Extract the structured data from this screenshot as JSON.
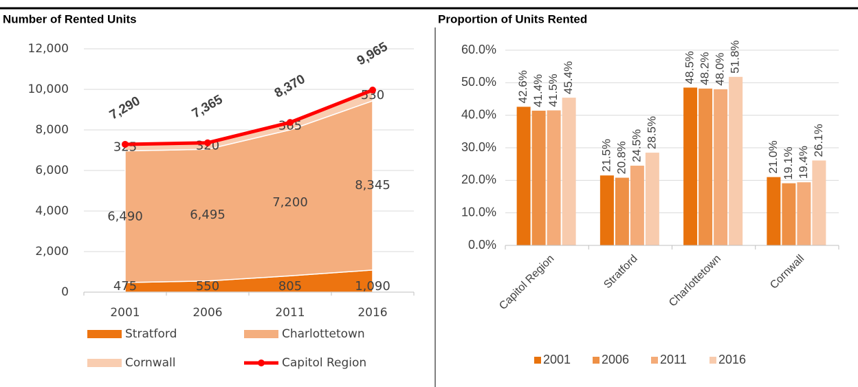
{
  "chart_data": [
    {
      "type": "area",
      "title": "Number of Rented Units",
      "categories": [
        "2001",
        "2006",
        "2011",
        "2016"
      ],
      "series": [
        {
          "name": "Stratford",
          "color": "#ed7410",
          "values": [
            475,
            550,
            805,
            1090
          ],
          "value_labels": [
            "475",
            "550",
            "805",
            "1,090"
          ]
        },
        {
          "name": "Charlottetown",
          "color": "#f4ae7e",
          "values": [
            6490,
            6495,
            7200,
            8345
          ],
          "value_labels": [
            "6,490",
            "6,495",
            "7,200",
            "8,345"
          ]
        },
        {
          "name": "Cornwall",
          "color": "#f9cdb0",
          "values": [
            325,
            320,
            365,
            530
          ],
          "value_labels": [
            "325",
            "320",
            "365",
            "530"
          ]
        },
        {
          "name": "Capitol Region",
          "color": "#ff0000",
          "type": "line",
          "values": [
            7290,
            7365,
            8370,
            9965
          ],
          "value_labels": [
            "7,290",
            "7,365",
            "8,370",
            "9,965"
          ]
        }
      ],
      "ylim": [
        0,
        12000
      ],
      "yticks": [
        0,
        {
          "value": 2000,
          "label": "2,000"
        },
        {
          "value": 4000,
          "label": "4,000"
        },
        {
          "value": 6000,
          "label": "6,000"
        },
        {
          "value": 8000,
          "label": "8,000"
        },
        {
          "value": 10000,
          "label": "10,000"
        },
        {
          "value": 12000,
          "label": "12,000"
        }
      ],
      "grid": true,
      "legend": "bottom"
    },
    {
      "type": "bar",
      "title": "Proportion of Units Rented",
      "categories": [
        "Capitol Region",
        "Stratford",
        "Charlottetown",
        "Cornwall"
      ],
      "series": [
        {
          "name": "2001",
          "color": "#e8720c",
          "values": [
            42.6,
            21.5,
            48.5,
            21.0
          ],
          "value_labels": [
            "42.6%",
            "21.5%",
            "48.5%",
            "21.0%"
          ]
        },
        {
          "name": "2006",
          "color": "#ee9045",
          "values": [
            41.4,
            20.8,
            48.2,
            19.1
          ],
          "value_labels": [
            "41.4%",
            "20.8%",
            "48.2%",
            "19.1%"
          ]
        },
        {
          "name": "2011",
          "color": "#f4ab78",
          "values": [
            41.5,
            24.5,
            48.0,
            19.4
          ],
          "value_labels": [
            "41.5%",
            "24.5%",
            "48.0%",
            "19.4%"
          ]
        },
        {
          "name": "2016",
          "color": "#f8cbad",
          "values": [
            45.4,
            28.5,
            51.8,
            26.1
          ],
          "value_labels": [
            "45.4%",
            "28.5%",
            "51.8%",
            "26.1%"
          ]
        }
      ],
      "ylim": [
        0,
        60
      ],
      "yticks": [
        {
          "value": 0,
          "label": "0.0%"
        },
        {
          "value": 10,
          "label": "10.0%"
        },
        {
          "value": 20,
          "label": "20.0%"
        },
        {
          "value": 30,
          "label": "30.0%"
        },
        {
          "value": 40,
          "label": "40.0%"
        },
        {
          "value": 50,
          "label": "50.0%"
        },
        {
          "value": 60,
          "label": "60.0%"
        }
      ],
      "grid": true,
      "legend": "bottom"
    }
  ]
}
